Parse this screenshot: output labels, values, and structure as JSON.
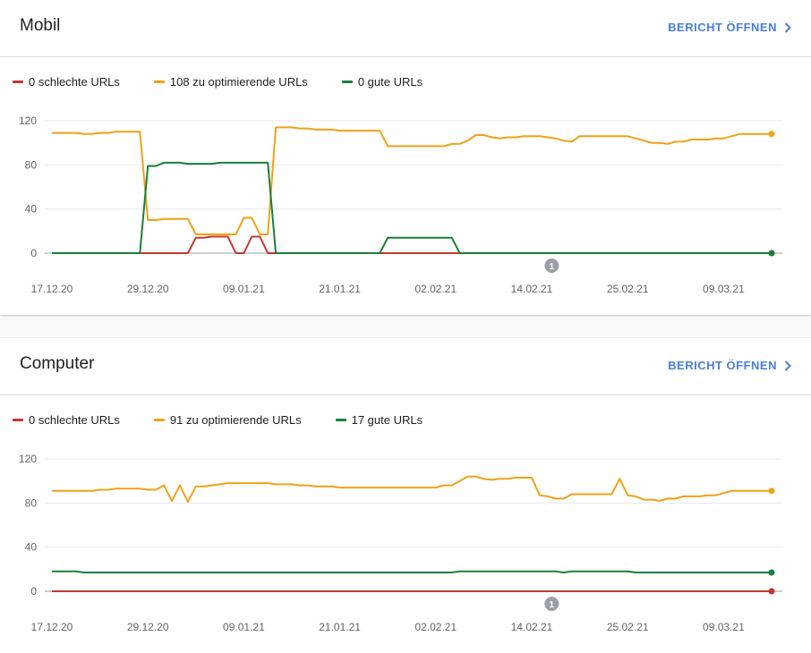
{
  "colors": {
    "bad": "#c5372c",
    "improve": "#f0a216",
    "good": "#188038"
  },
  "open_label": "BERICHT ÖFFNEN",
  "chart_data": [
    {
      "type": "line",
      "title": "Mobil",
      "legend": [
        "0 schlechte URLs",
        "108 zu optimierende URLs",
        "0 gute URLs"
      ],
      "ylim": [
        0,
        120
      ],
      "yticks": [
        0,
        40,
        80,
        120
      ],
      "xticks": [
        "17.12.20",
        "29.12.20",
        "09.01.21",
        "21.01.21",
        "02.02.21",
        "14.02.21",
        "25.02.21",
        "09.03.21"
      ],
      "annotation": "1",
      "series": [
        {
          "name": "0 schlechte URLs",
          "key": "bad",
          "points": [
            [
              0,
              0
            ],
            [
              17,
              0
            ],
            [
              18,
              14
            ],
            [
              19,
              14
            ],
            [
              20,
              15
            ],
            [
              21,
              15
            ],
            [
              22,
              15
            ],
            [
              23,
              0
            ],
            [
              24,
              0
            ],
            [
              25,
              15
            ],
            [
              26,
              15
            ],
            [
              27,
              0
            ],
            [
              90,
              0
            ]
          ]
        },
        {
          "name": "108 zu optimierende URLs",
          "key": "improve",
          "points": [
            [
              0,
              109
            ],
            [
              3,
              109
            ],
            [
              4,
              108
            ],
            [
              5,
              108
            ],
            [
              6,
              109
            ],
            [
              7,
              109
            ],
            [
              8,
              110
            ],
            [
              11,
              110
            ],
            [
              12,
              30
            ],
            [
              13,
              30
            ],
            [
              14,
              31
            ],
            [
              17,
              31
            ],
            [
              18,
              17
            ],
            [
              23,
              17
            ],
            [
              24,
              32
            ],
            [
              25,
              32
            ],
            [
              26,
              17
            ],
            [
              27,
              17
            ],
            [
              28,
              114
            ],
            [
              30,
              114
            ],
            [
              31,
              113
            ],
            [
              32,
              113
            ],
            [
              33,
              112
            ],
            [
              35,
              112
            ],
            [
              36,
              111
            ],
            [
              41,
              111
            ],
            [
              42,
              97
            ],
            [
              49,
              97
            ],
            [
              50,
              99
            ],
            [
              51,
              99
            ],
            [
              52,
              102
            ],
            [
              53,
              107
            ],
            [
              54,
              107
            ],
            [
              55,
              105
            ],
            [
              56,
              104
            ],
            [
              57,
              105
            ],
            [
              58,
              105
            ],
            [
              59,
              106
            ],
            [
              61,
              106
            ],
            [
              62,
              105
            ],
            [
              63,
              104
            ],
            [
              64,
              102
            ],
            [
              65,
              101
            ],
            [
              66,
              106
            ],
            [
              72,
              106
            ],
            [
              73,
              104
            ],
            [
              74,
              102
            ],
            [
              75,
              100
            ],
            [
              76,
              100
            ],
            [
              77,
              99
            ],
            [
              78,
              101
            ],
            [
              79,
              101
            ],
            [
              80,
              103
            ],
            [
              82,
              103
            ],
            [
              83,
              104
            ],
            [
              84,
              104
            ],
            [
              85,
              106
            ],
            [
              86,
              108
            ],
            [
              90,
              108
            ]
          ]
        },
        {
          "name": "0 gute URLs",
          "key": "good",
          "points": [
            [
              0,
              0
            ],
            [
              11,
              0
            ],
            [
              12,
              79
            ],
            [
              13,
              79
            ],
            [
              14,
              82
            ],
            [
              16,
              82
            ],
            [
              17,
              81
            ],
            [
              20,
              81
            ],
            [
              21,
              82
            ],
            [
              27,
              82
            ],
            [
              28,
              0
            ],
            [
              41,
              0
            ],
            [
              42,
              14
            ],
            [
              50,
              14
            ],
            [
              51,
              0
            ],
            [
              90,
              0
            ]
          ]
        }
      ]
    },
    {
      "type": "line",
      "title": "Computer",
      "legend": [
        "0 schlechte URLs",
        "91 zu optimierende URLs",
        "17 gute URLs"
      ],
      "ylim": [
        0,
        120
      ],
      "yticks": [
        0,
        40,
        80,
        120
      ],
      "xticks": [
        "17.12.20",
        "29.12.20",
        "09.01.21",
        "21.01.21",
        "02.02.21",
        "14.02.21",
        "25.02.21",
        "09.03.21"
      ],
      "annotation": "1",
      "series": [
        {
          "name": "0 schlechte URLs",
          "key": "bad",
          "points": [
            [
              0,
              0
            ],
            [
              90,
              0
            ]
          ]
        },
        {
          "name": "91 zu optimierende URLs",
          "key": "improve",
          "points": [
            [
              0,
              91
            ],
            [
              5,
              91
            ],
            [
              6,
              92
            ],
            [
              7,
              92
            ],
            [
              8,
              93
            ],
            [
              11,
              93
            ],
            [
              12,
              92
            ],
            [
              13,
              92
            ],
            [
              14,
              96
            ],
            [
              15,
              82
            ],
            [
              16,
              96
            ],
            [
              17,
              81
            ],
            [
              18,
              95
            ],
            [
              19,
              95
            ],
            [
              20,
              96
            ],
            [
              21,
              97
            ],
            [
              22,
              98
            ],
            [
              27,
              98
            ],
            [
              28,
              97
            ],
            [
              30,
              97
            ],
            [
              31,
              96
            ],
            [
              32,
              96
            ],
            [
              33,
              95
            ],
            [
              35,
              95
            ],
            [
              36,
              94
            ],
            [
              48,
              94
            ],
            [
              49,
              96
            ],
            [
              50,
              96
            ],
            [
              51,
              100
            ],
            [
              52,
              104
            ],
            [
              53,
              104
            ],
            [
              54,
              102
            ],
            [
              55,
              101
            ],
            [
              56,
              102
            ],
            [
              57,
              102
            ],
            [
              58,
              103
            ],
            [
              60,
              103
            ],
            [
              61,
              87
            ],
            [
              62,
              86
            ],
            [
              63,
              84
            ],
            [
              64,
              84
            ],
            [
              65,
              88
            ],
            [
              70,
              88
            ],
            [
              71,
              102
            ],
            [
              72,
              87
            ],
            [
              73,
              86
            ],
            [
              74,
              83
            ],
            [
              75,
              83
            ],
            [
              76,
              82
            ],
            [
              77,
              84
            ],
            [
              78,
              84
            ],
            [
              79,
              86
            ],
            [
              81,
              86
            ],
            [
              82,
              87
            ],
            [
              83,
              87
            ],
            [
              84,
              89
            ],
            [
              85,
              91
            ],
            [
              90,
              91
            ]
          ]
        },
        {
          "name": "17 gute URLs",
          "key": "good",
          "points": [
            [
              0,
              18
            ],
            [
              3,
              18
            ],
            [
              4,
              17
            ],
            [
              50,
              17
            ],
            [
              51,
              18
            ],
            [
              63,
              18
            ],
            [
              64,
              17
            ],
            [
              65,
              18
            ],
            [
              72,
              18
            ],
            [
              73,
              17
            ],
            [
              90,
              17
            ]
          ]
        }
      ]
    }
  ]
}
